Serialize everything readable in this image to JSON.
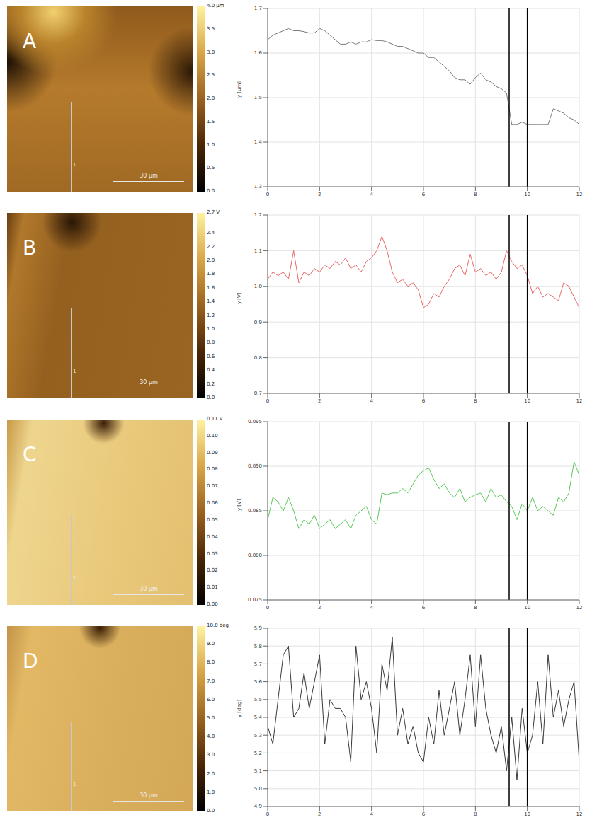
{
  "chart_data": [
    {
      "type": "line",
      "title": "A",
      "image": {
        "scale_bar": "30 µm",
        "profile_label": "1",
        "colorbar": {
          "range": [
            0,
            4
          ],
          "ticks": [
            {
              "value": 4,
              "label": "4.0 µm"
            },
            3.5,
            {
              "value": 3,
              "label": "3.0"
            },
            2.5,
            {
              "value": 2,
              "label": "2.0"
            },
            1.5,
            {
              "value": 1,
              "label": "1.0"
            },
            0.5,
            {
              "value": 0,
              "label": "0.0"
            }
          ]
        }
      },
      "y_label": "y [µm]",
      "xlim": [
        0,
        12
      ],
      "xticks": [
        0,
        2,
        4,
        6,
        8,
        10,
        12
      ],
      "ylim": [
        1.3,
        1.7
      ],
      "yticks": [
        1.3,
        1.4,
        1.5,
        1.6,
        1.7
      ],
      "grid": true,
      "reference_lines": [
        9.3,
        10.0
      ],
      "x": [
        0,
        0.2,
        0.4,
        0.6,
        0.8,
        1,
        1.2,
        1.4,
        1.6,
        1.8,
        2,
        2.2,
        2.4,
        2.6,
        2.8,
        3,
        3.2,
        3.4,
        3.6,
        3.8,
        4,
        4.2,
        4.4,
        4.6,
        4.8,
        5,
        5.2,
        5.4,
        5.6,
        5.8,
        6,
        6.2,
        6.4,
        6.6,
        6.8,
        7,
        7.2,
        7.4,
        7.6,
        7.8,
        8,
        8.2,
        8.4,
        8.6,
        8.8,
        9,
        9.2,
        9.4,
        9.6,
        9.8,
        10,
        10.2,
        10.4,
        10.6,
        10.8,
        11,
        11.2,
        11.4,
        11.6,
        11.8,
        12
      ],
      "series": [
        {
          "color": "#7a7a7a",
          "values": [
            1.63,
            1.64,
            1.645,
            1.65,
            1.655,
            1.65,
            1.65,
            1.648,
            1.645,
            1.645,
            1.655,
            1.65,
            1.64,
            1.63,
            1.62,
            1.62,
            1.625,
            1.62,
            1.625,
            1.625,
            1.63,
            1.628,
            1.628,
            1.625,
            1.62,
            1.615,
            1.615,
            1.61,
            1.605,
            1.6,
            1.6,
            1.59,
            1.59,
            1.58,
            1.57,
            1.56,
            1.545,
            1.54,
            1.54,
            1.53,
            1.545,
            1.555,
            1.54,
            1.535,
            1.525,
            1.52,
            1.51,
            1.44,
            1.44,
            1.445,
            1.44,
            1.44,
            1.44,
            1.44,
            1.44,
            1.475,
            1.47,
            1.465,
            1.455,
            1.45,
            1.44
          ]
        }
      ]
    },
    {
      "type": "line",
      "title": "B",
      "image": {
        "scale_bar": "30 µm",
        "profile_label": "1",
        "colorbar": {
          "range": [
            0,
            2.7
          ],
          "ticks": [
            {
              "value": 2.7,
              "label": "2.7 V"
            },
            2.4,
            2.2,
            {
              "value": 2,
              "label": "2.0"
            },
            1.8,
            1.6,
            1.4,
            1.2,
            {
              "value": 1,
              "label": "1.0"
            },
            0.8,
            0.6,
            0.4,
            0.2,
            {
              "value": 0,
              "label": "0.0"
            }
          ]
        }
      },
      "y_label": "y [V]",
      "xlim": [
        0,
        12
      ],
      "xticks": [
        0,
        2,
        4,
        6,
        8,
        10,
        12
      ],
      "ylim": [
        0.7,
        1.2
      ],
      "yticks": [
        0.7,
        0.8,
        0.9,
        {
          "value": 1,
          "label": "1.0"
        },
        1.1,
        1.2
      ],
      "grid": true,
      "reference_lines": [
        9.3,
        10.0
      ],
      "x": [
        0,
        0.2,
        0.4,
        0.6,
        0.8,
        1,
        1.2,
        1.4,
        1.6,
        1.8,
        2,
        2.2,
        2.4,
        2.6,
        2.8,
        3,
        3.2,
        3.4,
        3.6,
        3.8,
        4,
        4.2,
        4.4,
        4.6,
        4.8,
        5,
        5.2,
        5.4,
        5.6,
        5.8,
        6,
        6.2,
        6.4,
        6.6,
        6.8,
        7,
        7.2,
        7.4,
        7.6,
        7.8,
        8,
        8.2,
        8.4,
        8.6,
        8.8,
        9,
        9.2,
        9.4,
        9.6,
        9.8,
        10,
        10.2,
        10.4,
        10.6,
        10.8,
        11,
        11.2,
        11.4,
        11.6,
        11.8,
        12
      ],
      "series": [
        {
          "color": "#e8686a",
          "values": [
            1.02,
            1.04,
            1.03,
            1.04,
            1.02,
            1.1,
            1.01,
            1.04,
            1.03,
            1.05,
            1.04,
            1.06,
            1.05,
            1.07,
            1.06,
            1.08,
            1.05,
            1.06,
            1.04,
            1.07,
            1.08,
            1.1,
            1.14,
            1.1,
            1.04,
            1.01,
            1.02,
            1.0,
            1.01,
            0.99,
            0.94,
            0.95,
            0.98,
            0.97,
            1.0,
            1.02,
            1.05,
            1.06,
            1.03,
            1.09,
            1.04,
            1.05,
            1.03,
            1.04,
            1.02,
            1.04,
            1.1,
            1.07,
            1.05,
            1.06,
            1.03,
            0.98,
            1.0,
            0.97,
            0.98,
            0.97,
            0.96,
            1.01,
            1.0,
            0.97,
            0.94
          ]
        }
      ]
    },
    {
      "type": "line",
      "title": "C",
      "image": {
        "scale_bar": "30 µm",
        "profile_label": "1",
        "colorbar": {
          "range": [
            0,
            0.11
          ],
          "ticks": [
            {
              "value": 0.11,
              "label": "0.11 V"
            },
            {
              "value": 0.1,
              "label": "0.10"
            },
            0.09,
            0.08,
            0.07,
            0.06,
            0.05,
            0.04,
            0.03,
            0.02,
            0.01,
            {
              "value": 0,
              "label": "0.00"
            }
          ]
        }
      },
      "y_label": "y [V]",
      "xlim": [
        0,
        12
      ],
      "xticks": [
        0,
        2,
        4,
        6,
        8,
        10,
        12
      ],
      "ylim": [
        0.075,
        0.095
      ],
      "yticks": [
        0.075,
        {
          "value": 0.08,
          "label": "0.080"
        },
        0.085,
        {
          "value": 0.09,
          "label": "0.090"
        },
        0.095
      ],
      "grid": true,
      "reference_lines": [
        9.3,
        10.0
      ],
      "x": [
        0,
        0.2,
        0.4,
        0.6,
        0.8,
        1,
        1.2,
        1.4,
        1.6,
        1.8,
        2,
        2.2,
        2.4,
        2.6,
        2.8,
        3,
        3.2,
        3.4,
        3.6,
        3.8,
        4,
        4.2,
        4.4,
        4.6,
        4.8,
        5,
        5.2,
        5.4,
        5.6,
        5.8,
        6,
        6.2,
        6.4,
        6.6,
        6.8,
        7,
        7.2,
        7.4,
        7.6,
        7.8,
        8,
        8.2,
        8.4,
        8.6,
        8.8,
        9,
        9.2,
        9.4,
        9.6,
        9.8,
        10,
        10.2,
        10.4,
        10.6,
        10.8,
        11,
        11.2,
        11.4,
        11.6,
        11.8,
        12
      ],
      "series": [
        {
          "color": "#5cc85c",
          "values": [
            0.084,
            0.0865,
            0.086,
            0.085,
            0.0865,
            0.085,
            0.083,
            0.084,
            0.0835,
            0.0845,
            0.083,
            0.0835,
            0.084,
            0.083,
            0.0835,
            0.084,
            0.083,
            0.0845,
            0.085,
            0.0855,
            0.084,
            0.0835,
            0.087,
            0.0868,
            0.087,
            0.087,
            0.0875,
            0.087,
            0.088,
            0.089,
            0.0895,
            0.0898,
            0.0885,
            0.0875,
            0.088,
            0.087,
            0.0865,
            0.0875,
            0.086,
            0.0865,
            0.0868,
            0.087,
            0.086,
            0.0875,
            0.0865,
            0.0868,
            0.086,
            0.0855,
            0.084,
            0.0858,
            0.085,
            0.0865,
            0.085,
            0.0855,
            0.085,
            0.0845,
            0.0865,
            0.086,
            0.087,
            0.0905,
            0.089
          ]
        }
      ]
    },
    {
      "type": "line",
      "title": "D",
      "image": {
        "scale_bar": "30 µm",
        "profile_label": "1",
        "colorbar": {
          "range": [
            0,
            10
          ],
          "ticks": [
            {
              "value": 10,
              "label": "10.0 deg"
            },
            {
              "value": 9,
              "label": "9.0"
            },
            {
              "value": 8,
              "label": "8.0"
            },
            {
              "value": 7,
              "label": "7.0"
            },
            {
              "value": 6,
              "label": "6.0"
            },
            {
              "value": 5,
              "label": "5.0"
            },
            {
              "value": 4,
              "label": "4.0"
            },
            {
              "value": 3,
              "label": "3.0"
            },
            {
              "value": 2,
              "label": "2.0"
            },
            {
              "value": 1,
              "label": "1.0"
            },
            {
              "value": 0,
              "label": "0.0"
            }
          ]
        }
      },
      "y_label": "y [deg]",
      "xlim": [
        0,
        12
      ],
      "xticks": [
        0,
        2,
        4,
        6,
        8,
        10,
        12
      ],
      "ylim": [
        4.9,
        5.9
      ],
      "yticks": [
        4.9,
        {
          "value": 5,
          "label": "5.0"
        },
        5.1,
        5.2,
        5.3,
        5.4,
        5.5,
        5.6,
        5.7,
        5.8,
        5.9
      ],
      "grid": true,
      "reference_lines": [
        9.3,
        10.0
      ],
      "x": [
        0,
        0.2,
        0.4,
        0.6,
        0.8,
        1,
        1.2,
        1.4,
        1.6,
        1.8,
        2,
        2.2,
        2.4,
        2.6,
        2.8,
        3,
        3.2,
        3.4,
        3.6,
        3.8,
        4,
        4.2,
        4.4,
        4.6,
        4.8,
        5,
        5.2,
        5.4,
        5.6,
        5.8,
        6,
        6.2,
        6.4,
        6.6,
        6.8,
        7,
        7.2,
        7.4,
        7.6,
        7.8,
        8,
        8.2,
        8.4,
        8.6,
        8.8,
        9,
        9.2,
        9.4,
        9.6,
        9.8,
        10,
        10.2,
        10.4,
        10.6,
        10.8,
        11,
        11.2,
        11.4,
        11.6,
        11.8,
        12
      ],
      "series": [
        {
          "color": "#3a3a3a",
          "values": [
            5.35,
            5.25,
            5.5,
            5.75,
            5.8,
            5.4,
            5.45,
            5.65,
            5.45,
            5.6,
            5.75,
            5.25,
            5.5,
            5.45,
            5.45,
            5.4,
            5.15,
            5.8,
            5.5,
            5.6,
            5.45,
            5.2,
            5.7,
            5.55,
            5.85,
            5.3,
            5.45,
            5.25,
            5.35,
            5.2,
            5.15,
            5.4,
            5.25,
            5.55,
            5.3,
            5.45,
            5.6,
            5.3,
            5.5,
            5.75,
            5.35,
            5.75,
            5.45,
            5.3,
            5.2,
            5.35,
            5.1,
            5.4,
            5.05,
            5.45,
            5.2,
            5.3,
            5.6,
            5.25,
            5.75,
            5.4,
            5.55,
            5.35,
            5.5,
            5.6,
            5.15
          ]
        }
      ]
    }
  ]
}
